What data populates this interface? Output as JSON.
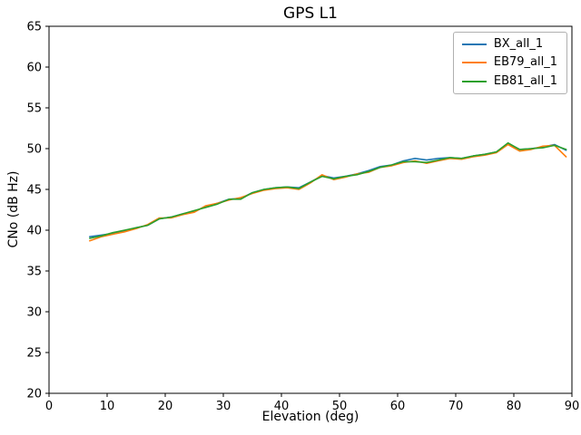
{
  "chart_data": {
    "type": "line",
    "title": "GPS L1",
    "xlabel": "Elevation (deg)",
    "ylabel": "CNo (dB Hz)",
    "xlim": [
      0,
      90
    ],
    "ylim": [
      20,
      65
    ],
    "xticks": [
      0,
      10,
      20,
      30,
      40,
      50,
      60,
      70,
      80,
      90
    ],
    "yticks": [
      20,
      25,
      30,
      35,
      40,
      45,
      50,
      55,
      60,
      65
    ],
    "grid": false,
    "legend_position": "upper right",
    "x": [
      7,
      9,
      11,
      13,
      15,
      17,
      19,
      21,
      23,
      25,
      27,
      29,
      31,
      33,
      35,
      37,
      39,
      41,
      43,
      45,
      47,
      49,
      51,
      53,
      55,
      57,
      59,
      61,
      63,
      65,
      67,
      69,
      71,
      73,
      75,
      77,
      79,
      81,
      83,
      85,
      87,
      89
    ],
    "series": [
      {
        "name": "BX_all_1",
        "color": "#1f77b4",
        "values": [
          39.2,
          39.4,
          39.6,
          39.9,
          40.3,
          40.6,
          41.4,
          41.6,
          42.0,
          42.3,
          42.9,
          43.3,
          43.8,
          43.9,
          44.6,
          45.0,
          45.2,
          45.3,
          45.2,
          45.9,
          46.7,
          46.4,
          46.6,
          46.9,
          47.3,
          47.8,
          48.0,
          48.5,
          48.8,
          48.6,
          48.8,
          48.9,
          48.8,
          49.1,
          49.3,
          49.6,
          50.6,
          49.9,
          50.0,
          50.2,
          50.5,
          49.8
        ]
      },
      {
        "name": "EB79_all_1",
        "color": "#ff7f0e",
        "values": [
          38.7,
          39.2,
          39.5,
          39.8,
          40.2,
          40.7,
          41.5,
          41.5,
          41.9,
          42.2,
          43.0,
          43.3,
          43.7,
          44.0,
          44.5,
          44.9,
          45.1,
          45.2,
          45.0,
          45.8,
          46.8,
          46.2,
          46.5,
          46.9,
          47.1,
          47.7,
          47.9,
          48.3,
          48.5,
          48.2,
          48.5,
          48.8,
          48.7,
          49.0,
          49.2,
          49.5,
          50.5,
          49.7,
          49.9,
          50.3,
          50.4,
          49.0
        ]
      },
      {
        "name": "EB81_all_1",
        "color": "#2ca02c",
        "values": [
          39.0,
          39.3,
          39.7,
          40.0,
          40.3,
          40.6,
          41.4,
          41.6,
          42.0,
          42.4,
          42.8,
          43.2,
          43.8,
          43.8,
          44.6,
          45.0,
          45.2,
          45.3,
          45.1,
          45.9,
          46.6,
          46.3,
          46.6,
          46.8,
          47.2,
          47.7,
          48.0,
          48.4,
          48.4,
          48.3,
          48.6,
          48.9,
          48.8,
          49.1,
          49.3,
          49.6,
          50.7,
          49.9,
          50.0,
          50.1,
          50.4,
          49.9
        ]
      }
    ]
  }
}
